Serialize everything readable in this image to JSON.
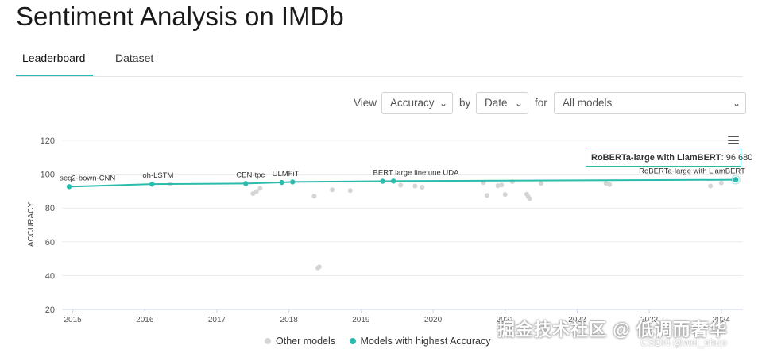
{
  "page": {
    "title": "Sentiment Analysis on IMDb"
  },
  "tabs": [
    {
      "label": "Leaderboard",
      "active": true
    },
    {
      "label": "Dataset",
      "active": false
    }
  ],
  "controls": {
    "view_label": "View",
    "view_value": "Accuracy",
    "by_label": "by",
    "by_value": "Date",
    "for_label": "for",
    "for_value": "All models"
  },
  "tooltip": {
    "model": "RoBERTa-large with LlamBERT",
    "value": "96.680"
  },
  "legend": {
    "other": "Other models",
    "best": "Models with highest Accuracy"
  },
  "watermark": {
    "text": "掘金技术社区 @ 低调而奢华",
    "sub": "CSDN @wei_shuo"
  },
  "colors": {
    "accent": "#2bbbad",
    "other": "#d5d5d5",
    "grid": "#ececec"
  },
  "chart_data": {
    "type": "scatter",
    "ylabel": "ACCURACY",
    "ylim": [
      20,
      120
    ],
    "yticks": [
      20,
      40,
      60,
      80,
      100,
      120
    ],
    "xticks": [
      "2015",
      "2016",
      "2017",
      "2018",
      "2019",
      "2020",
      "2021",
      "2022",
      "2023",
      "2024"
    ],
    "xlim": [
      2014.85,
      2024.3
    ],
    "series": [
      {
        "name": "Models with highest Accuracy",
        "points": [
          {
            "x": 2014.95,
            "y": 92.6,
            "label": "seq2-bown-CNN"
          },
          {
            "x": 2016.1,
            "y": 94.1,
            "label": "oh-LSTM"
          },
          {
            "x": 2017.4,
            "y": 94.5,
            "label": "CEN-tpc"
          },
          {
            "x": 2017.9,
            "y": 95.1,
            "label": "ULMFiT"
          },
          {
            "x": 2018.05,
            "y": 95.4,
            "label": ""
          },
          {
            "x": 2019.3,
            "y": 95.8,
            "label": "BERT large finetune UDA"
          },
          {
            "x": 2019.45,
            "y": 95.9,
            "label": ""
          },
          {
            "x": 2024.2,
            "y": 96.68,
            "label": "RoBERTa-large with LlamBERT"
          }
        ]
      },
      {
        "name": "Other models",
        "points": [
          {
            "x": 2016.35,
            "y": 94.2
          },
          {
            "x": 2017.5,
            "y": 88.5
          },
          {
            "x": 2017.55,
            "y": 89.8
          },
          {
            "x": 2017.6,
            "y": 91.6
          },
          {
            "x": 2018.35,
            "y": 87.0
          },
          {
            "x": 2018.4,
            "y": 44.5
          },
          {
            "x": 2018.42,
            "y": 45.2
          },
          {
            "x": 2018.6,
            "y": 90.8
          },
          {
            "x": 2018.85,
            "y": 90.3
          },
          {
            "x": 2019.55,
            "y": 93.5
          },
          {
            "x": 2019.75,
            "y": 93.0
          },
          {
            "x": 2019.85,
            "y": 92.3
          },
          {
            "x": 2020.7,
            "y": 95.0
          },
          {
            "x": 2020.75,
            "y": 87.5
          },
          {
            "x": 2020.9,
            "y": 93.2
          },
          {
            "x": 2020.95,
            "y": 93.6
          },
          {
            "x": 2021.0,
            "y": 88.0
          },
          {
            "x": 2021.1,
            "y": 95.5
          },
          {
            "x": 2021.3,
            "y": 88.2
          },
          {
            "x": 2021.32,
            "y": 86.7
          },
          {
            "x": 2021.34,
            "y": 85.5
          },
          {
            "x": 2021.5,
            "y": 94.5
          },
          {
            "x": 2022.4,
            "y": 94.6
          },
          {
            "x": 2022.45,
            "y": 93.8
          },
          {
            "x": 2023.85,
            "y": 93.0
          },
          {
            "x": 2024.0,
            "y": 94.8
          }
        ]
      }
    ]
  }
}
